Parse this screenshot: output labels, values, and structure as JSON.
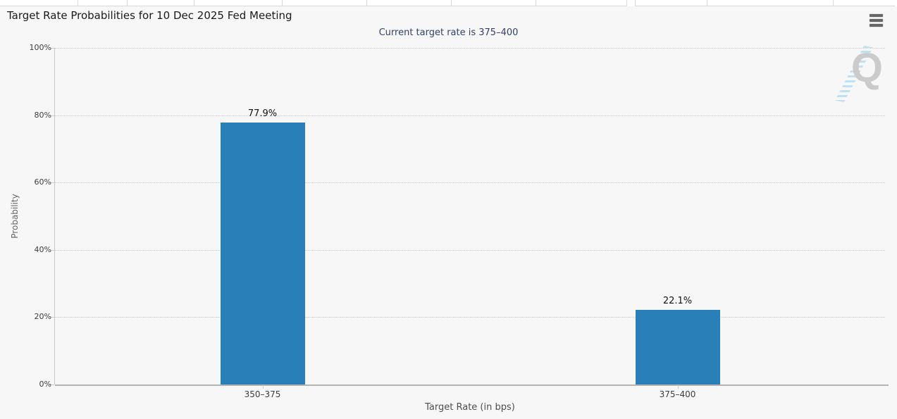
{
  "chart_data": {
    "type": "bar",
    "title": "Target Rate Probabilities for 10 Dec 2025 Fed Meeting",
    "subtitle": "Current target rate is 375–400",
    "categories": [
      "350–375",
      "375–400"
    ],
    "values": [
      77.9,
      22.1
    ],
    "data_labels": [
      "77.9%",
      "22.1%"
    ],
    "xlabel": "Target Rate (in bps)",
    "ylabel": "Probability",
    "ylim": [
      0,
      100
    ],
    "ytick_values": [
      0,
      20,
      40,
      60,
      80,
      100
    ],
    "ytick_labels": [
      "0%",
      "20%",
      "40%",
      "60%",
      "80%",
      "100%"
    ],
    "grid": "horizontal dotted",
    "legend": "none",
    "bar_color": "#2980b9"
  },
  "toolbar": {
    "menu_icon": "hamburger-icon"
  },
  "watermark": {
    "letter": "Q"
  },
  "colors": {
    "background": "#f7f7f7",
    "bar": "#2980b9",
    "subtitle_text": "#31406b",
    "gridline": "#cfcfcf",
    "watermark_stripes": "#bfe1f3"
  }
}
